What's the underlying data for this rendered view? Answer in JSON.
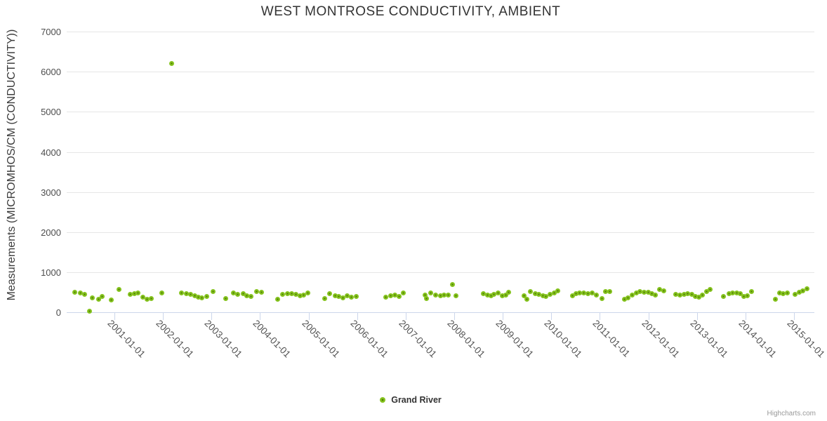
{
  "chart": {
    "title": "WEST MONTROSE CONDUCTIVITY, AMBIENT",
    "credits": "Highcharts.com"
  },
  "legend": {
    "label": "Grand River"
  },
  "colors": {
    "marker_outer": "#85c31e",
    "marker_inner": "#4e7c04",
    "gridline": "#e6e6e6",
    "axis_line": "#ccd6eb",
    "title_text": "#333333",
    "axis_label_text": "#555555",
    "credits_text": "#999999"
  },
  "chart_data": {
    "type": "scatter",
    "title": "WEST MONTROSE CONDUCTIVITY, AMBIENT",
    "xlabel": "",
    "ylabel": "Measurements (MICROMHOS/CM (CONDUCTIVITY))",
    "grid": "horizontal",
    "legend_position": "bottom-center",
    "x_axis": {
      "type": "datetime",
      "min": "2000-01-07",
      "max": "2015-06-03",
      "tick_labels": [
        "2001-01-01",
        "2002-01-01",
        "2003-01-01",
        "2004-01-01",
        "2005-01-01",
        "2006-01-01",
        "2007-01-01",
        "2008-01-01",
        "2009-01-01",
        "2010-01-01",
        "2011-01-01",
        "2012-01-01",
        "2013-01-01",
        "2014-01-01",
        "2015-01-01"
      ]
    },
    "y_axis": {
      "min": 0,
      "max": 7000,
      "tick_interval": 1000,
      "tick_labels": [
        "0",
        "1000",
        "2000",
        "3000",
        "4000",
        "5000",
        "6000",
        "7000"
      ]
    },
    "series": [
      {
        "name": "Grand River",
        "color": "#85c31e",
        "points": [
          [
            "2000-03-09",
            512
          ],
          [
            "2000-04-17",
            483
          ],
          [
            "2000-05-19",
            454
          ],
          [
            "2000-06-26",
            30
          ],
          [
            "2000-07-20",
            367
          ],
          [
            "2000-09-01",
            337
          ],
          [
            "2000-10-01",
            396
          ],
          [
            "2000-12-07",
            309
          ],
          [
            "2001-02-01",
            570
          ],
          [
            "2001-05-01",
            454
          ],
          [
            "2001-05-29",
            471
          ],
          [
            "2001-06-28",
            494
          ],
          [
            "2001-08-02",
            379
          ],
          [
            "2001-09-01",
            337
          ],
          [
            "2001-10-07",
            354
          ],
          [
            "2001-12-21",
            494
          ],
          [
            "2002-03-06",
            6210
          ],
          [
            "2002-05-19",
            483
          ],
          [
            "2002-06-27",
            471
          ],
          [
            "2002-07-29",
            454
          ],
          [
            "2002-08-30",
            424
          ],
          [
            "2002-09-23",
            379
          ],
          [
            "2002-10-22",
            367
          ],
          [
            "2002-11-26",
            396
          ],
          [
            "2003-01-12",
            529
          ],
          [
            "2003-04-16",
            354
          ],
          [
            "2003-06-12",
            494
          ],
          [
            "2003-07-17",
            454
          ],
          [
            "2003-08-25",
            471
          ],
          [
            "2003-09-25",
            424
          ],
          [
            "2003-10-27",
            396
          ],
          [
            "2003-12-05",
            529
          ],
          [
            "2004-01-12",
            512
          ],
          [
            "2004-05-11",
            337
          ],
          [
            "2004-06-19",
            454
          ],
          [
            "2004-07-25",
            471
          ],
          [
            "2004-08-26",
            471
          ],
          [
            "2004-09-27",
            454
          ],
          [
            "2004-10-27",
            424
          ],
          [
            "2004-11-26",
            437
          ],
          [
            "2004-12-27",
            494
          ],
          [
            "2005-04-30",
            354
          ],
          [
            "2005-06-07",
            471
          ],
          [
            "2005-07-18",
            424
          ],
          [
            "2005-08-17",
            396
          ],
          [
            "2005-09-17",
            367
          ],
          [
            "2005-10-19",
            414
          ],
          [
            "2005-11-18",
            379
          ],
          [
            "2005-12-24",
            396
          ],
          [
            "2006-08-04",
            379
          ],
          [
            "2006-09-08",
            424
          ],
          [
            "2006-10-13",
            437
          ],
          [
            "2006-11-11",
            396
          ],
          [
            "2006-12-16",
            494
          ],
          [
            "2007-05-27",
            437
          ],
          [
            "2007-06-05",
            354
          ],
          [
            "2007-07-10",
            494
          ],
          [
            "2007-08-14",
            437
          ],
          [
            "2007-09-19",
            424
          ],
          [
            "2007-10-19",
            437
          ],
          [
            "2007-11-17",
            437
          ],
          [
            "2007-12-17",
            690
          ],
          [
            "2008-01-16",
            414
          ],
          [
            "2008-08-08",
            471
          ],
          [
            "2008-09-07",
            437
          ],
          [
            "2008-10-04",
            424
          ],
          [
            "2008-10-25",
            454
          ],
          [
            "2008-11-26",
            483
          ],
          [
            "2008-12-28",
            424
          ],
          [
            "2009-01-22",
            437
          ],
          [
            "2009-02-14",
            512
          ],
          [
            "2009-06-09",
            414
          ],
          [
            "2009-06-30",
            337
          ],
          [
            "2009-07-28",
            529
          ],
          [
            "2009-09-01",
            471
          ],
          [
            "2009-10-01",
            454
          ],
          [
            "2009-10-28",
            424
          ],
          [
            "2009-11-23",
            396
          ],
          [
            "2009-12-23",
            454
          ],
          [
            "2010-01-21",
            494
          ],
          [
            "2010-02-20",
            548
          ],
          [
            "2010-06-11",
            424
          ],
          [
            "2010-07-06",
            471
          ],
          [
            "2010-08-03",
            494
          ],
          [
            "2010-09-02",
            483
          ],
          [
            "2010-10-02",
            471
          ],
          [
            "2010-11-03",
            483
          ],
          [
            "2010-12-05",
            437
          ],
          [
            "2011-01-16",
            354
          ],
          [
            "2011-02-13",
            529
          ],
          [
            "2011-03-15",
            529
          ],
          [
            "2011-07-07",
            337
          ],
          [
            "2011-08-03",
            367
          ],
          [
            "2011-09-02",
            437
          ],
          [
            "2011-10-04",
            483
          ],
          [
            "2011-10-30",
            529
          ],
          [
            "2011-11-29",
            512
          ],
          [
            "2011-12-31",
            512
          ],
          [
            "2012-01-26",
            471
          ],
          [
            "2012-02-25",
            437
          ],
          [
            "2012-03-25",
            570
          ],
          [
            "2012-04-24",
            541
          ],
          [
            "2012-07-27",
            454
          ],
          [
            "2012-08-26",
            437
          ],
          [
            "2012-09-25",
            454
          ],
          [
            "2012-10-23",
            471
          ],
          [
            "2012-11-22",
            454
          ],
          [
            "2012-12-22",
            396
          ],
          [
            "2013-01-14",
            379
          ],
          [
            "2013-02-13",
            437
          ],
          [
            "2013-03-13",
            529
          ],
          [
            "2013-04-07",
            570
          ],
          [
            "2013-07-20",
            396
          ],
          [
            "2013-09-01",
            471
          ],
          [
            "2013-09-28",
            483
          ],
          [
            "2013-10-26",
            494
          ],
          [
            "2013-11-22",
            471
          ],
          [
            "2013-12-19",
            396
          ],
          [
            "2014-01-17",
            414
          ],
          [
            "2014-02-15",
            529
          ],
          [
            "2014-08-16",
            337
          ],
          [
            "2014-09-13",
            483
          ],
          [
            "2014-10-13",
            471
          ],
          [
            "2014-11-09",
            483
          ],
          [
            "2015-01-10",
            454
          ],
          [
            "2015-02-09",
            512
          ],
          [
            "2015-03-10",
            541
          ],
          [
            "2015-04-09",
            588
          ]
        ]
      }
    ]
  }
}
